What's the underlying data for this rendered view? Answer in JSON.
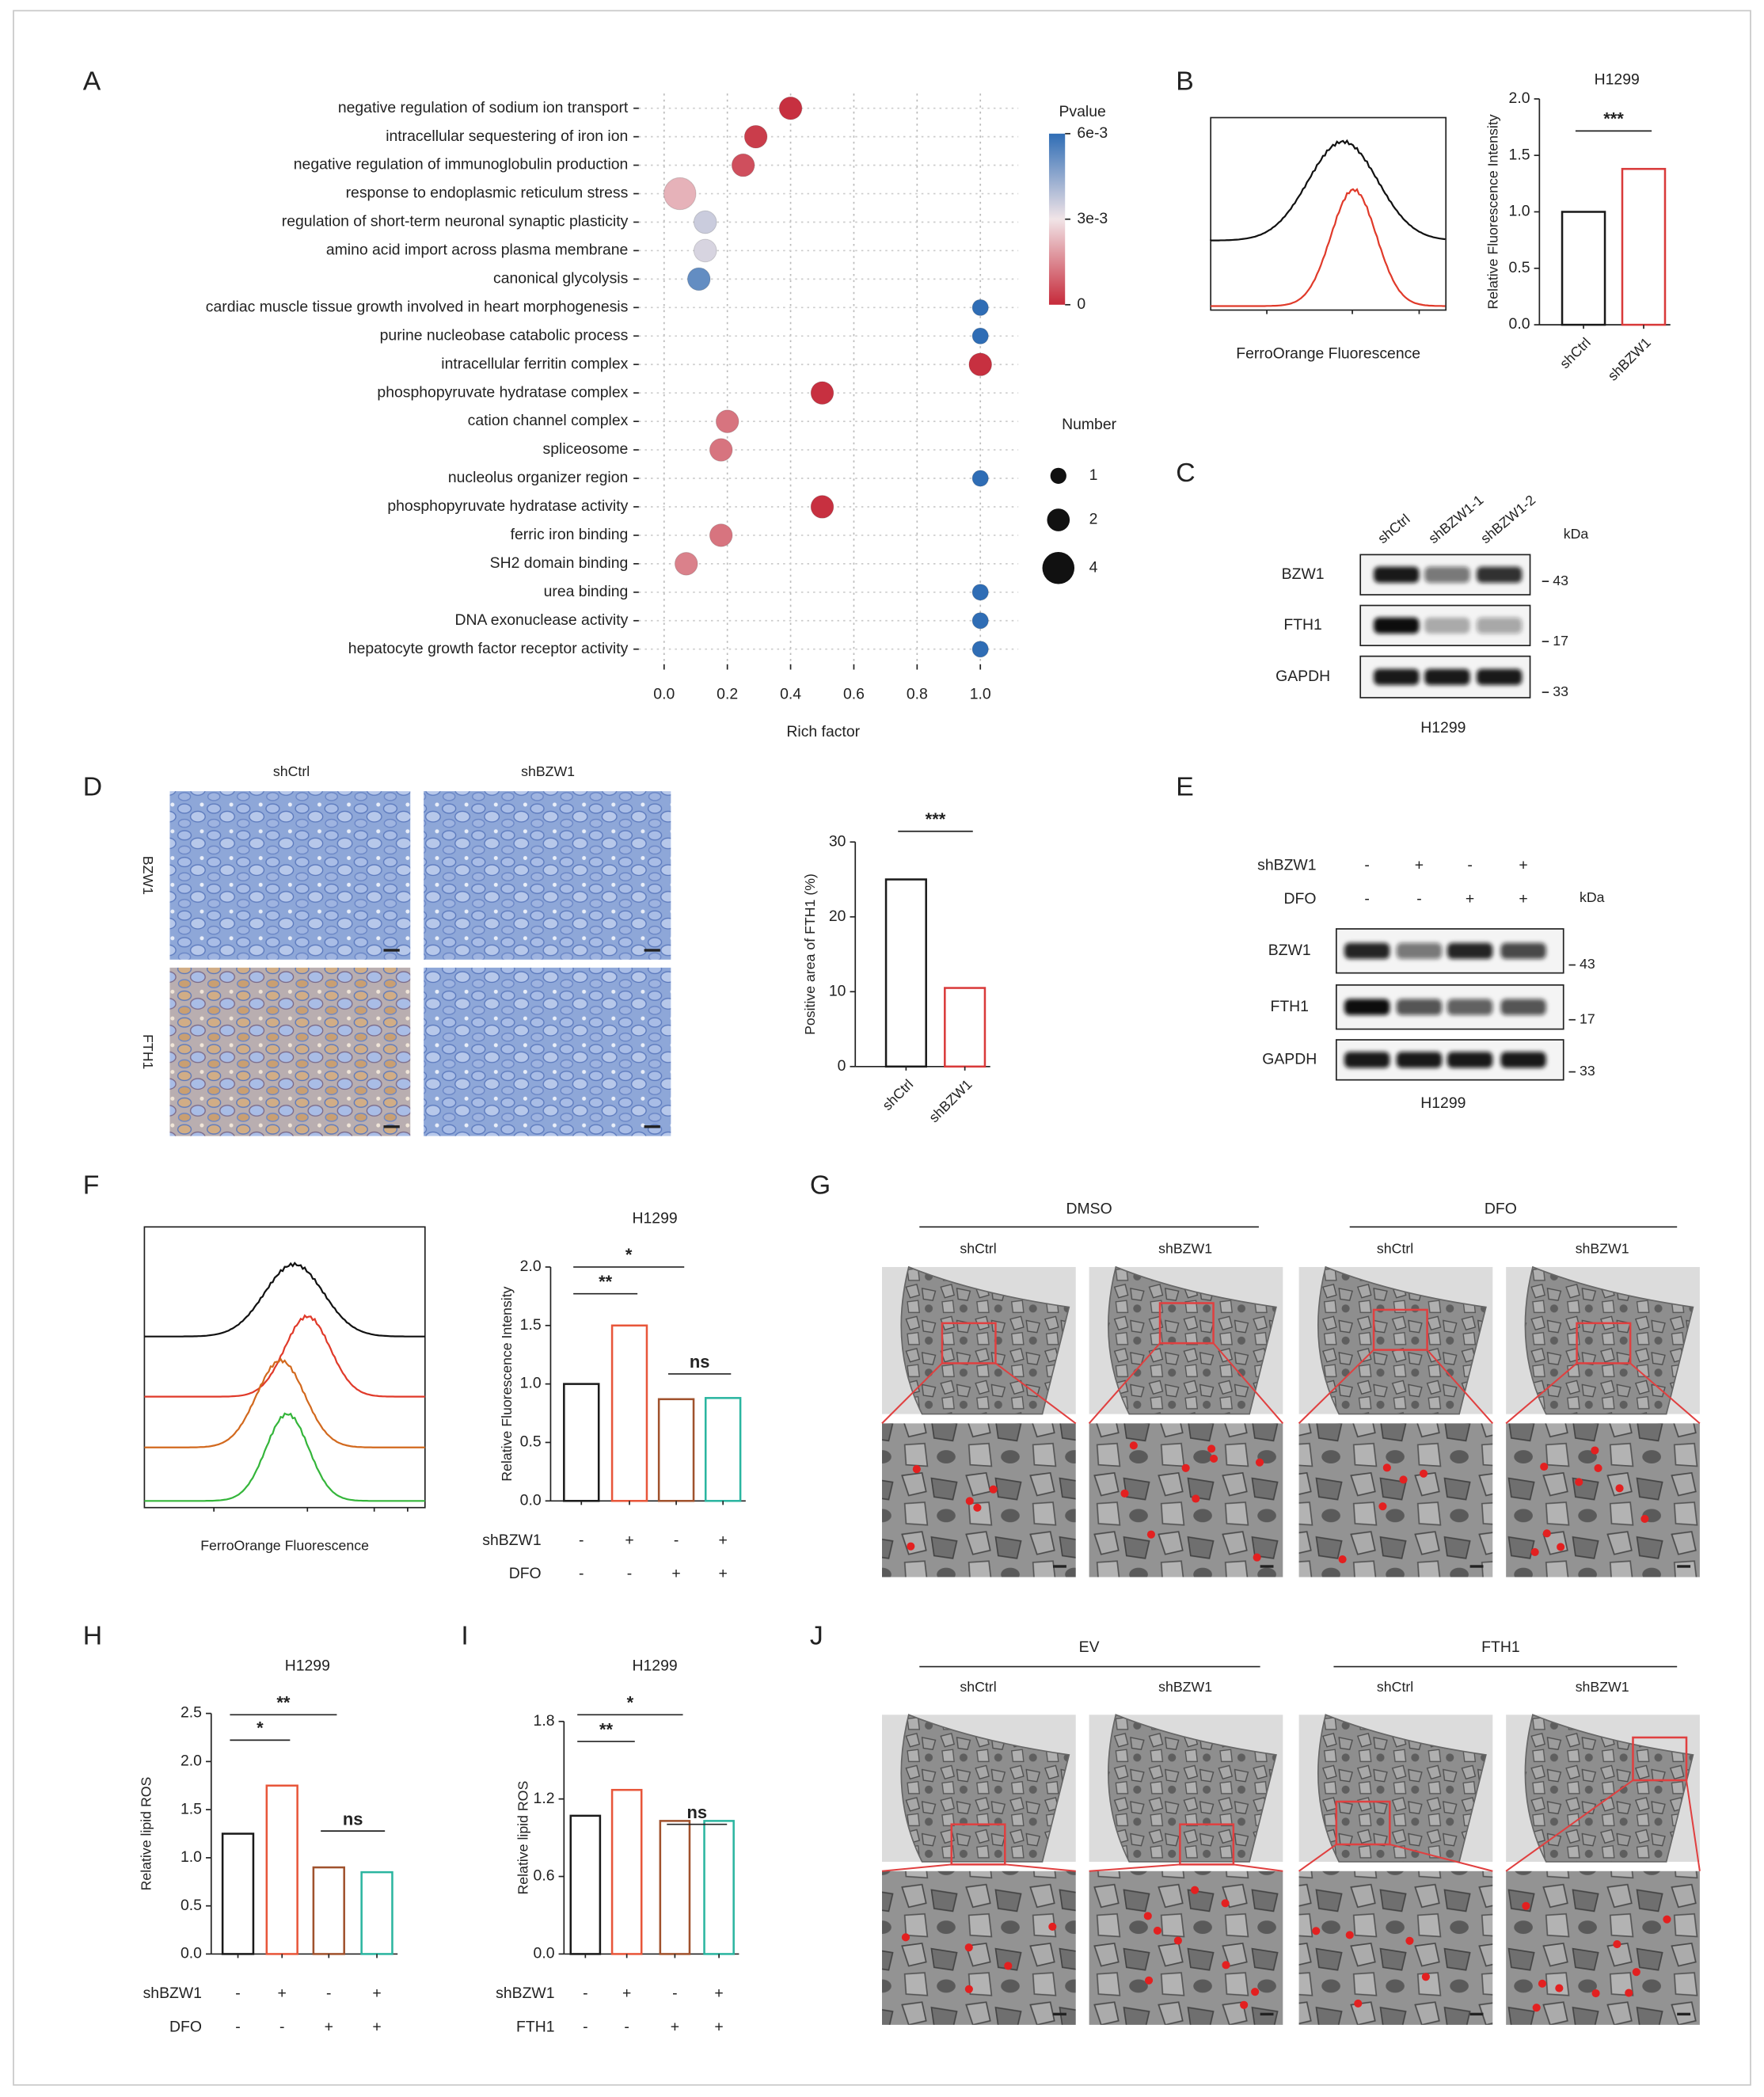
{
  "panels": [
    "A",
    "B",
    "C",
    "D",
    "E",
    "F",
    "G",
    "H",
    "I",
    "J"
  ],
  "chart_data": [
    {
      "type": "dot",
      "xlabel": "Rich factor",
      "categories": [
        "negative regulation of sodium ion transport",
        "intracellular sequestering of iron ion",
        "negative regulation of immunoglobulin production",
        "response to endoplasmic reticulum stress",
        "regulation of short-term neuronal synaptic plasticity",
        "amino acid import across plasma membrane",
        "canonical glycolysis",
        "cardiac muscle tissue growth involved in heart morphogenesis",
        "purine nucleobase catabolic process",
        "intracellular ferritin complex",
        "phosphopyruvate hydratase complex",
        "cation channel complex",
        "spliceosome",
        "nucleolus organizer region",
        "phosphopyruvate hydratase activity",
        "ferric iron binding",
        "SH2 domain binding",
        "urea binding",
        "DNA exonuclease activity",
        "hepatocyte growth factor receptor activity"
      ],
      "category_colors": [
        "#222222",
        "#d42a2a",
        "#222222",
        "#222222",
        "#222222",
        "#222222",
        "#222222",
        "#222222",
        "#222222",
        "#d42a2a",
        "#222222",
        "#222222",
        "#2fb52f",
        "#222222",
        "#222222",
        "#d42a2a",
        "#222222",
        "#222222",
        "#222222",
        "#222222"
      ],
      "values": [
        0.4,
        0.29,
        0.25,
        0.05,
        0.13,
        0.13,
        0.11,
        1.0,
        1.0,
        1.0,
        0.5,
        0.2,
        0.18,
        1.0,
        0.5,
        0.18,
        0.07,
        1.0,
        1.0,
        1.0
      ],
      "pvalue": [
        0.0001,
        0.0003,
        0.0006,
        0.0022,
        0.0036,
        0.0034,
        0.0052,
        0.006,
        0.006,
        0.0001,
        0.0001,
        0.0012,
        0.0012,
        0.006,
        0.0001,
        0.0012,
        0.0014,
        0.006,
        0.006,
        0.006
      ],
      "number": [
        2,
        2,
        2,
        4,
        2,
        2,
        2,
        1,
        1,
        2,
        2,
        2,
        2,
        1,
        2,
        2,
        2,
        1,
        1,
        1
      ],
      "xlim": [
        -0.08,
        1.12
      ],
      "xticks": [
        {
          "value": 0,
          "label": "0.0"
        },
        0.2,
        0.4,
        0.6,
        0.8,
        {
          "value": 1,
          "label": "1.0"
        }
      ],
      "grid": true,
      "color_label": "Pvalue",
      "colorscale": [
        "#c62a3a",
        "#f1e4e7",
        "#2f6db5"
      ],
      "clim": [
        0,
        0.006
      ],
      "color_ticks": [
        {
          "value": 0.006,
          "label": "6e-3"
        },
        {
          "value": 0.003,
          "label": "3e-3"
        },
        0
      ],
      "size_label": "Number",
      "size_ticks": [
        1,
        2,
        4
      ]
    },
    {
      "type": "bar",
      "title": "H1299",
      "ylabel": "Relative Fluorescence Intensity",
      "categories": [
        "shCtrl",
        "shBZW1"
      ],
      "values": [
        1.0,
        1.38
      ],
      "colors": [
        "#1a1a1a",
        "#d93a3a"
      ],
      "ylim": [
        0,
        2.0
      ],
      "yticks": [
        {
          "value": 0,
          "label": "0.0"
        },
        0.5,
        {
          "value": 1,
          "label": "1.0"
        },
        1.5,
        {
          "value": 2,
          "label": "2.0"
        }
      ],
      "annotations": [
        "***"
      ]
    },
    {
      "type": "bar",
      "ylabel": "Positive area of FTH1 (%)",
      "categories": [
        "shCtrl",
        "shBZW1"
      ],
      "values": [
        25,
        10.5
      ],
      "colors": [
        "#1a1a1a",
        "#d93a3a"
      ],
      "ylim": [
        0,
        30
      ],
      "yticks": [
        0,
        10,
        20,
        30
      ],
      "annotations": [
        "***"
      ]
    },
    {
      "type": "bar",
      "title": "H1299",
      "ylabel": "Relative Fluorescence Intensity",
      "categories": [
        null,
        null,
        null,
        null
      ],
      "values": [
        1.0,
        1.5,
        0.87,
        0.88
      ],
      "colors": [
        "#1a1a1a",
        "#e8563a",
        "#a0522d",
        "#2bb5a0"
      ],
      "conditions": [
        {
          "name": "shBZW1",
          "signs": [
            "-",
            "+",
            "-",
            "+"
          ]
        },
        {
          "name": "DFO",
          "signs": [
            "-",
            "-",
            "+",
            "+"
          ]
        }
      ],
      "ylim": [
        0,
        2.0
      ],
      "yticks": [
        {
          "value": 0,
          "label": "0.0"
        },
        0.5,
        {
          "value": 1,
          "label": "1.0"
        },
        1.5,
        {
          "value": 2,
          "label": "2.0"
        }
      ],
      "annotations": [
        "*",
        "**",
        "ns"
      ]
    },
    {
      "type": "bar",
      "title": "H1299",
      "ylabel": "Relative lipid ROS",
      "categories": [
        null,
        null,
        null,
        null
      ],
      "values": [
        1.25,
        1.75,
        0.9,
        0.85
      ],
      "colors": [
        "#1a1a1a",
        "#e8563a",
        "#a0522d",
        "#2bb5a0"
      ],
      "conditions": [
        {
          "name": "shBZW1",
          "signs": [
            "-",
            "+",
            "-",
            "+"
          ]
        },
        {
          "name": "DFO",
          "signs": [
            "-",
            "-",
            "+",
            "+"
          ]
        }
      ],
      "ylim": [
        0,
        2.5
      ],
      "yticks": [
        {
          "value": 0,
          "label": "0.0"
        },
        0.5,
        {
          "value": 1,
          "label": "1.0"
        },
        1.5,
        {
          "value": 2,
          "label": "2.0"
        },
        2.5
      ],
      "annotations": [
        "*",
        "**",
        "ns"
      ]
    },
    {
      "type": "bar",
      "title": "H1299",
      "ylabel": "Relative lipid ROS",
      "categories": [
        null,
        null,
        null,
        null
      ],
      "values": [
        1.07,
        1.27,
        1.03,
        1.03
      ],
      "colors": [
        "#1a1a1a",
        "#e8563a",
        "#a0522d",
        "#2bb5a0"
      ],
      "conditions": [
        {
          "name": "shBZW1",
          "signs": [
            "-",
            "+",
            "-",
            "+"
          ]
        },
        {
          "name": "FTH1",
          "signs": [
            "-",
            "-",
            "+",
            "+"
          ]
        }
      ],
      "ylim": [
        0,
        1.8
      ],
      "yticks": [
        {
          "value": 0,
          "label": "0.0"
        },
        0.6,
        1.2,
        1.8
      ],
      "annotations": [
        "*",
        "**",
        "ns"
      ]
    }
  ],
  "flow": {
    "B": {
      "xlabel": "FerroOrange Fluorescence"
    },
    "F": {
      "xlabel": "FerroOrange Fluorescence"
    }
  },
  "blots": {
    "C": {
      "lanes": [
        "shCtrl",
        "shBZW1-1",
        "shBZW1-2"
      ],
      "rows": [
        "BZW1",
        "FTH1",
        "GAPDH"
      ],
      "markers": [
        "kDa",
        "43",
        "17",
        "33"
      ],
      "cell": "H1299"
    },
    "E": {
      "conditions": [
        {
          "name": "shBZW1",
          "signs": [
            "-",
            "+",
            "-",
            "+"
          ]
        },
        {
          "name": "DFO",
          "signs": [
            "-",
            "-",
            "+",
            "+"
          ]
        }
      ],
      "rows": [
        "BZW1",
        "FTH1",
        "GAPDH"
      ],
      "markers": [
        "kDa",
        "43",
        "17",
        "33"
      ],
      "cell": "H1299"
    }
  },
  "images": {
    "D": {
      "columns": [
        "shCtrl",
        "shBZW1"
      ],
      "rows": [
        "BZW1",
        "FTH1"
      ]
    },
    "G": {
      "groups": [
        "DMSO",
        "DFO"
      ],
      "columns": [
        "shCtrl",
        "shBZW1",
        "shCtrl",
        "shBZW1"
      ]
    },
    "J": {
      "groups": [
        "EV",
        "FTH1"
      ],
      "columns": [
        "shCtrl",
        "shBZW1",
        "shCtrl",
        "shBZW1"
      ]
    }
  }
}
